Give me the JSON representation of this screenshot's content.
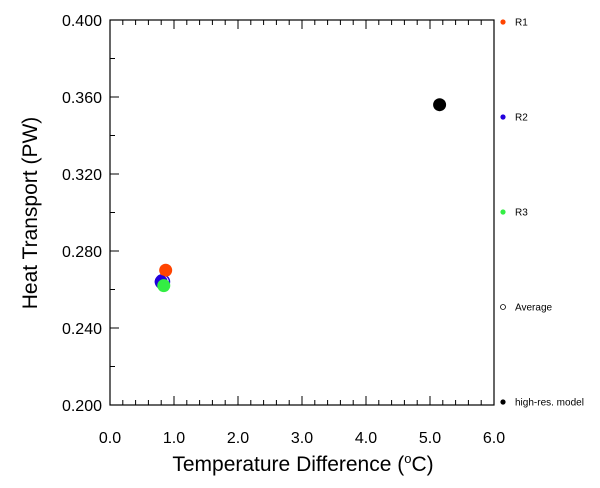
{
  "chart_data": {
    "type": "scatter",
    "title": "",
    "xlabel": "Temperature Difference (",
    "xlabel_unit_sup": "o",
    "xlabel_unit_end": "C)",
    "ylabel": "Heat Transport (PW)",
    "xlim": [
      0.0,
      6.0
    ],
    "ylim": [
      0.2,
      0.4
    ],
    "x_ticks": [
      "0.0",
      "1.0",
      "2.0",
      "3.0",
      "4.0",
      "5.0",
      "6.0"
    ],
    "y_ticks": [
      "0.200",
      "0.240",
      "0.280",
      "0.320",
      "0.360",
      "0.400"
    ],
    "grid": false,
    "legend_position": "right, outside plot",
    "series": [
      {
        "name": "Average",
        "marker": "open-circle",
        "color": "#2200dd",
        "points": [
          {
            "x": 0.82,
            "y": 0.264
          }
        ]
      },
      {
        "name": "R1",
        "marker": "filled-circle",
        "color": "#ff4400",
        "points": [
          {
            "x": 0.87,
            "y": 0.27
          }
        ]
      },
      {
        "name": "R2",
        "marker": "filled-circle",
        "color": "#2200dd",
        "points": [
          {
            "x": 0.8,
            "y": 0.264
          }
        ]
      },
      {
        "name": "R3",
        "marker": "filled-circle",
        "color": "#33ee44",
        "points": [
          {
            "x": 0.84,
            "y": 0.262
          }
        ]
      },
      {
        "name": "high-res. model",
        "marker": "filled-circle",
        "color": "#000000",
        "points": [
          {
            "x": 5.15,
            "y": 0.356
          }
        ]
      }
    ],
    "legend_order": [
      "R1",
      "R2",
      "R3",
      "Average",
      "high-res. model"
    ]
  }
}
